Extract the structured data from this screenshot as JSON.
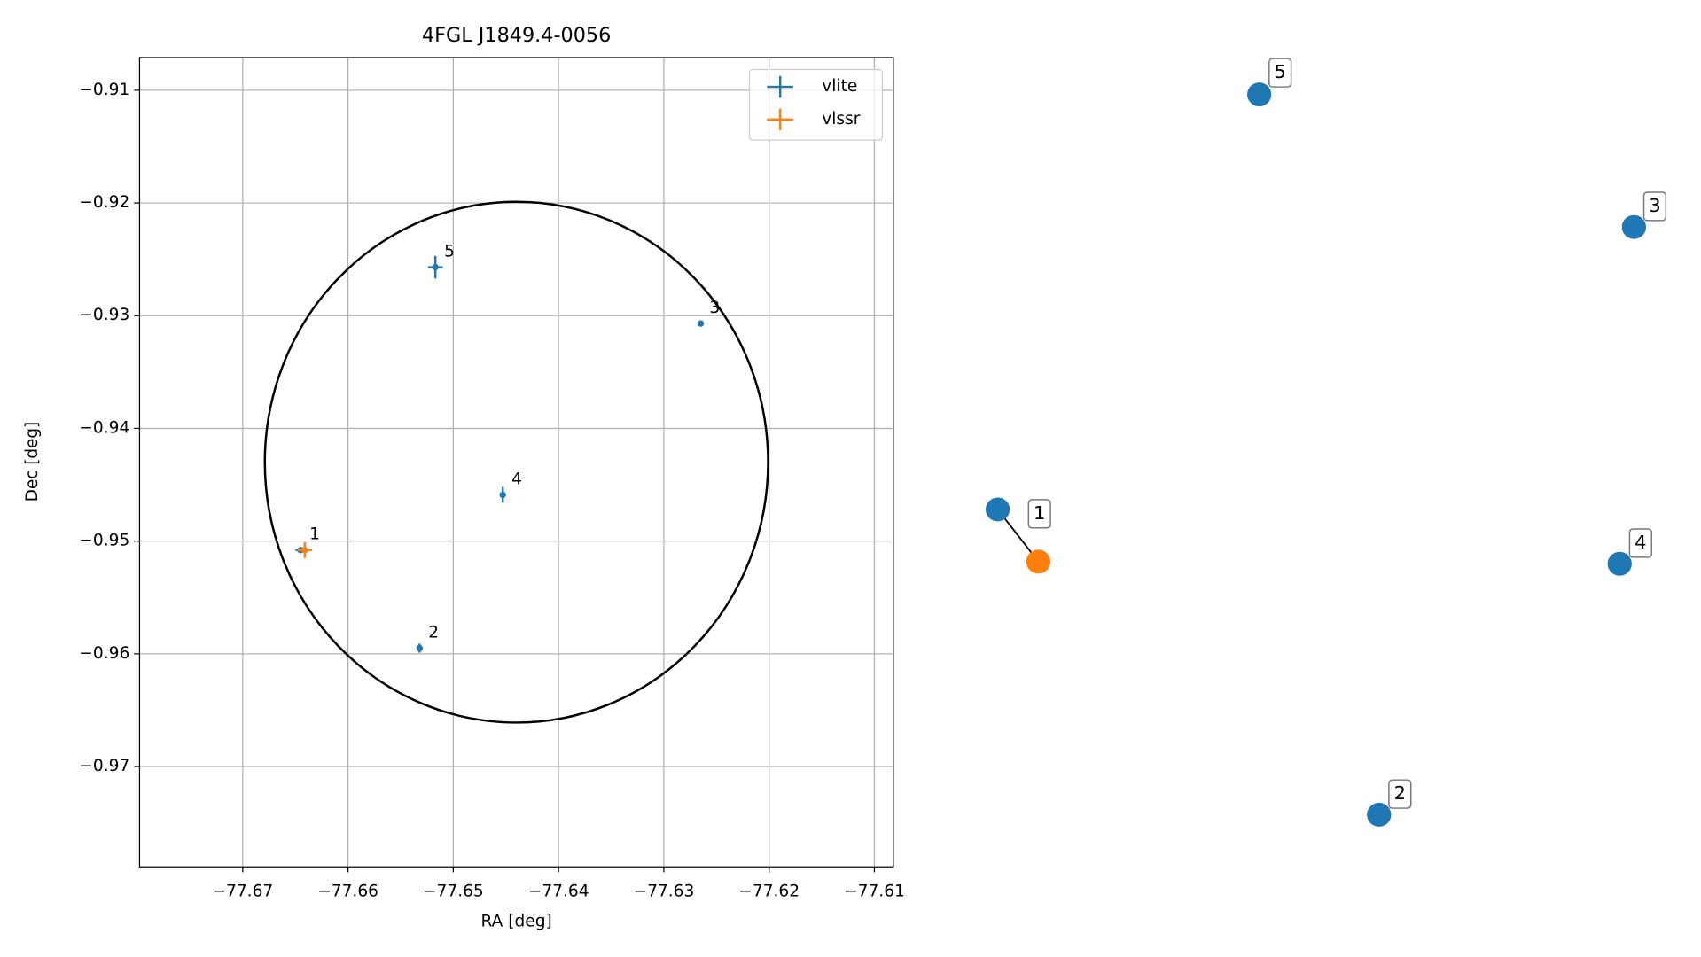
{
  "chart_data": [
    {
      "type": "scatter",
      "title": "4FGL J1849.4-0056",
      "xlabel": "RA [deg]",
      "ylabel": "Dec [deg]",
      "xlim": [
        -77.6798,
        -77.6082
      ],
      "ylim": [
        -0.9789,
        -0.9071
      ],
      "xticks": [
        {
          "value": -77.67,
          "label": "−77.67"
        },
        {
          "value": -77.66,
          "label": "−77.66"
        },
        {
          "value": -77.65,
          "label": "−77.65"
        },
        {
          "value": -77.64,
          "label": "−77.64"
        },
        {
          "value": -77.63,
          "label": "−77.63"
        },
        {
          "value": -77.62,
          "label": "−77.62"
        },
        {
          "value": -77.61,
          "label": "−77.61"
        }
      ],
      "yticks": [
        {
          "value": -0.91,
          "label": "−0.91"
        },
        {
          "value": -0.92,
          "label": "−0.92"
        },
        {
          "value": -0.93,
          "label": "−0.93"
        },
        {
          "value": -0.94,
          "label": "−0.94"
        },
        {
          "value": -0.95,
          "label": "−0.95"
        },
        {
          "value": -0.96,
          "label": "−0.96"
        },
        {
          "value": -0.97,
          "label": "−0.97"
        }
      ],
      "grid": true,
      "legend": "upper right",
      "series": [
        {
          "name": "vlite",
          "color": "#1f77b4",
          "x": [
            -77.6645,
            -77.6532,
            -77.6265,
            -77.6453,
            -77.6517
          ],
          "values": [
            -0.9508,
            -0.9595,
            -0.9307,
            -0.9459,
            -0.9257
          ],
          "xerr": [
            0.0005,
            0.0002,
            0.0001,
            0.0002,
            0.0007
          ],
          "yerr": [
            0.0002,
            0.0004,
            0.0001,
            0.0007,
            0.001
          ],
          "labels": [
            "1",
            "2",
            "3",
            "4",
            "5"
          ]
        },
        {
          "name": "vlssr",
          "color": "#ff7f0e",
          "x": [
            -77.6641
          ],
          "values": [
            -0.9508
          ],
          "xerr": [
            0.0007
          ],
          "yerr": [
            0.0007
          ]
        }
      ],
      "circle": {
        "ra": -77.644,
        "dec": -0.943,
        "radius_ra": 0.0239,
        "radius_dec": 0.0231,
        "color": "#000000"
      }
    },
    {
      "type": "graph",
      "nodes": [
        {
          "label": "1",
          "color": "#1f77b4"
        },
        {
          "color": "#ff7f0e"
        },
        {
          "label": "2",
          "color": "#1f77b4"
        },
        {
          "label": "3",
          "color": "#1f77b4"
        },
        {
          "label": "4",
          "color": "#1f77b4"
        },
        {
          "label": "5",
          "color": "#1f77b4"
        }
      ],
      "edges": [
        [
          0,
          1
        ]
      ]
    }
  ]
}
